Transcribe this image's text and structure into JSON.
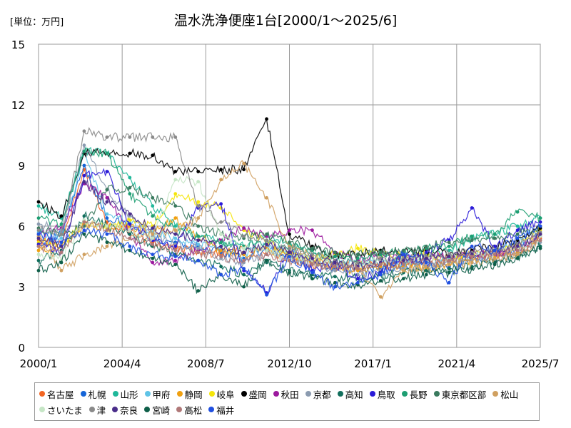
{
  "chart_data": {
    "type": "line",
    "title": "温水洗浄便座1台[2000/1～2025/6]",
    "unit_label": "[単位：万円]",
    "xlabel": "",
    "ylabel": "",
    "x_start": "2000/1",
    "x_end": "2025/7",
    "x_ticks": [
      "2000/1",
      "2004/4",
      "2008/7",
      "2012/10",
      "2017/1",
      "2021/4",
      "2025/7"
    ],
    "y_ticks": [
      0,
      3,
      6,
      9,
      12,
      15
    ],
    "ylim": [
      0,
      15
    ],
    "grid": true,
    "legend_position": "bottom",
    "series": [
      {
        "name": "名古屋",
        "color": "#f26522",
        "values": [
          5.3,
          5.2,
          8.8,
          6.2,
          5.8,
          5.2,
          4.9,
          4.8,
          4.6,
          4.9,
          4.8,
          4.3,
          4.1,
          4.0,
          4.1,
          4.0,
          4.2,
          4.3,
          4.4,
          4.5,
          4.6,
          4.7,
          5.4
        ]
      },
      {
        "name": "札幌",
        "color": "#1565d8",
        "values": [
          5.0,
          5.6,
          9.0,
          6.4,
          6.0,
          5.4,
          5.2,
          5.0,
          4.7,
          4.4,
          4.8,
          4.5,
          4.2,
          3.9,
          3.8,
          3.9,
          4.1,
          4.2,
          4.0,
          4.4,
          4.5,
          4.9,
          5.6
        ]
      },
      {
        "name": "山形",
        "color": "#1fb89a",
        "values": [
          7.0,
          6.4,
          9.7,
          9.6,
          8.4,
          7.0,
          6.0,
          5.5,
          5.2,
          5.0,
          5.5,
          5.1,
          4.6,
          4.3,
          4.2,
          4.4,
          4.3,
          4.6,
          4.8,
          5.4,
          5.6,
          6.0,
          6.4
        ]
      },
      {
        "name": "甲府",
        "color": "#5fc3e6",
        "values": [
          5.7,
          5.4,
          9.6,
          6.6,
          6.2,
          5.7,
          5.4,
          5.1,
          4.9,
          4.6,
          5.0,
          4.7,
          4.3,
          4.1,
          4.1,
          4.3,
          4.1,
          4.2,
          4.4,
          4.6,
          4.8,
          5.2,
          5.9
        ]
      },
      {
        "name": "静岡",
        "color": "#f0a010",
        "values": [
          4.8,
          5.0,
          6.1,
          5.9,
          6.0,
          5.6,
          6.4,
          5.5,
          4.8,
          4.6,
          4.9,
          4.6,
          4.2,
          4.0,
          3.8,
          4.0,
          4.0,
          3.9,
          4.1,
          4.3,
          4.5,
          4.7,
          5.6
        ]
      },
      {
        "name": "岐阜",
        "color": "#f5e60a",
        "values": [
          5.2,
          5.0,
          6.2,
          5.9,
          6.3,
          6.0,
          7.6,
          7.2,
          6.9,
          5.8,
          5.3,
          4.6,
          4.4,
          4.6,
          4.9,
          4.6,
          4.5,
          4.7,
          4.3,
          4.7,
          4.8,
          5.1,
          5.8
        ]
      },
      {
        "name": "盛岡",
        "color": "#000000",
        "values": [
          7.2,
          6.5,
          9.6,
          9.6,
          9.6,
          9.5,
          8.7,
          8.7,
          8.8,
          8.8,
          11.3,
          5.6,
          5.0,
          4.5,
          4.6,
          4.8,
          4.7,
          4.8,
          4.6,
          4.8,
          5.0,
          5.3,
          5.9
        ]
      },
      {
        "name": "秋田",
        "color": "#9c1a9e",
        "values": [
          5.6,
          5.9,
          8.1,
          7.4,
          5.6,
          4.2,
          4.3,
          4.8,
          5.3,
          5.9,
          5.5,
          5.8,
          5.8,
          4.7,
          4.3,
          4.6,
          4.3,
          4.5,
          4.5,
          4.6,
          4.6,
          4.9,
          5.5
        ]
      },
      {
        "name": "京都",
        "color": "#8b9bb0",
        "values": [
          6.1,
          5.8,
          10.0,
          7.8,
          6.5,
          5.5,
          5.1,
          4.9,
          4.4,
          4.2,
          4.6,
          4.4,
          4.1,
          3.8,
          3.6,
          3.8,
          3.9,
          4.0,
          4.2,
          4.3,
          4.3,
          4.6,
          5.2
        ]
      },
      {
        "name": "高知",
        "color": "#116e5c",
        "values": [
          4.3,
          4.8,
          6.5,
          6.0,
          5.6,
          5.0,
          4.6,
          4.3,
          4.0,
          3.6,
          4.2,
          3.8,
          3.6,
          3.5,
          3.4,
          3.6,
          3.7,
          3.8,
          3.9,
          4.0,
          4.2,
          4.5,
          5.0
        ]
      },
      {
        "name": "鳥取",
        "color": "#2a1ad8",
        "values": [
          5.1,
          4.7,
          8.5,
          8.7,
          6.1,
          5.3,
          5.0,
          6.9,
          7.1,
          3.8,
          2.7,
          4.9,
          3.8,
          4.1,
          3.4,
          3.7,
          4.4,
          4.7,
          5.3,
          6.9,
          5.0,
          5.8,
          6.2
        ]
      },
      {
        "name": "長野",
        "color": "#1e9e72",
        "values": [
          6.4,
          6.1,
          9.7,
          9.6,
          7.6,
          6.5,
          5.8,
          5.5,
          5.2,
          5.0,
          5.3,
          5.0,
          4.8,
          4.5,
          4.4,
          4.6,
          4.7,
          4.9,
          5.0,
          5.5,
          5.6,
          6.7,
          6.4
        ]
      },
      {
        "name": "東京都区部",
        "color": "#3a7a5e",
        "values": [
          5.9,
          5.6,
          6.0,
          7.8,
          7.9,
          7.4,
          7.0,
          6.0,
          5.6,
          5.4,
          5.6,
          5.2,
          4.9,
          4.7,
          4.6,
          4.7,
          4.8,
          5.0,
          5.2,
          5.3,
          5.4,
          5.6,
          6.0
        ]
      },
      {
        "name": "松山",
        "color": "#d0a060",
        "values": [
          5.5,
          3.8,
          4.6,
          5.0,
          5.4,
          5.6,
          5.8,
          6.4,
          8.3,
          9.1,
          7.4,
          5.0,
          4.5,
          4.2,
          3.9,
          2.5,
          3.8,
          4.0,
          4.1,
          4.2,
          4.4,
          4.6,
          5.3
        ]
      },
      {
        "name": "さいたま",
        "color": "#c6e6c6",
        "values": [
          4.6,
          4.3,
          6.3,
          6.0,
          5.8,
          5.4,
          8.3,
          8.2,
          5.6,
          4.9,
          4.8,
          4.4,
          4.3,
          4.2,
          4.1,
          4.3,
          4.3,
          4.4,
          4.5,
          4.6,
          4.7,
          4.9,
          5.5
        ]
      },
      {
        "name": "津",
        "color": "#8a8a8a",
        "values": [
          5.8,
          5.6,
          10.7,
          10.4,
          10.4,
          10.4,
          10.4,
          7.0,
          6.2,
          5.5,
          5.3,
          4.9,
          4.6,
          4.3,
          4.2,
          4.4,
          4.4,
          4.5,
          4.6,
          4.7,
          4.8,
          5.1,
          5.7
        ]
      },
      {
        "name": "奈良",
        "color": "#4a2d8a",
        "values": [
          5.4,
          5.0,
          8.2,
          7.2,
          6.6,
          5.9,
          5.6,
          5.3,
          5.0,
          4.7,
          5.1,
          4.7,
          4.4,
          4.2,
          4.0,
          4.2,
          4.3,
          4.4,
          4.5,
          4.6,
          4.8,
          5.0,
          5.6
        ]
      },
      {
        "name": "宮崎",
        "color": "#0e5e48",
        "values": [
          3.8,
          4.2,
          5.6,
          5.2,
          4.8,
          4.4,
          4.1,
          2.8,
          3.6,
          3.0,
          4.3,
          3.7,
          3.4,
          3.2,
          3.1,
          3.3,
          3.4,
          3.6,
          3.7,
          3.9,
          4.1,
          4.4,
          4.9
        ]
      },
      {
        "name": "高松",
        "color": "#b07878",
        "values": [
          5.0,
          4.7,
          6.2,
          5.8,
          5.4,
          5.1,
          4.8,
          4.7,
          4.5,
          4.3,
          4.6,
          4.3,
          4.1,
          4.0,
          3.9,
          4.1,
          4.1,
          4.2,
          4.3,
          4.5,
          4.6,
          4.8,
          5.3
        ]
      },
      {
        "name": "福井",
        "color": "#2050e0",
        "values": [
          5.6,
          5.2,
          5.8,
          5.6,
          5.0,
          4.6,
          4.5,
          4.3,
          3.6,
          3.9,
          2.6,
          4.5,
          3.7,
          3.0,
          3.2,
          3.6,
          4.6,
          4.2,
          3.2,
          5.0,
          4.8,
          5.4,
          6.0
        ]
      }
    ]
  }
}
